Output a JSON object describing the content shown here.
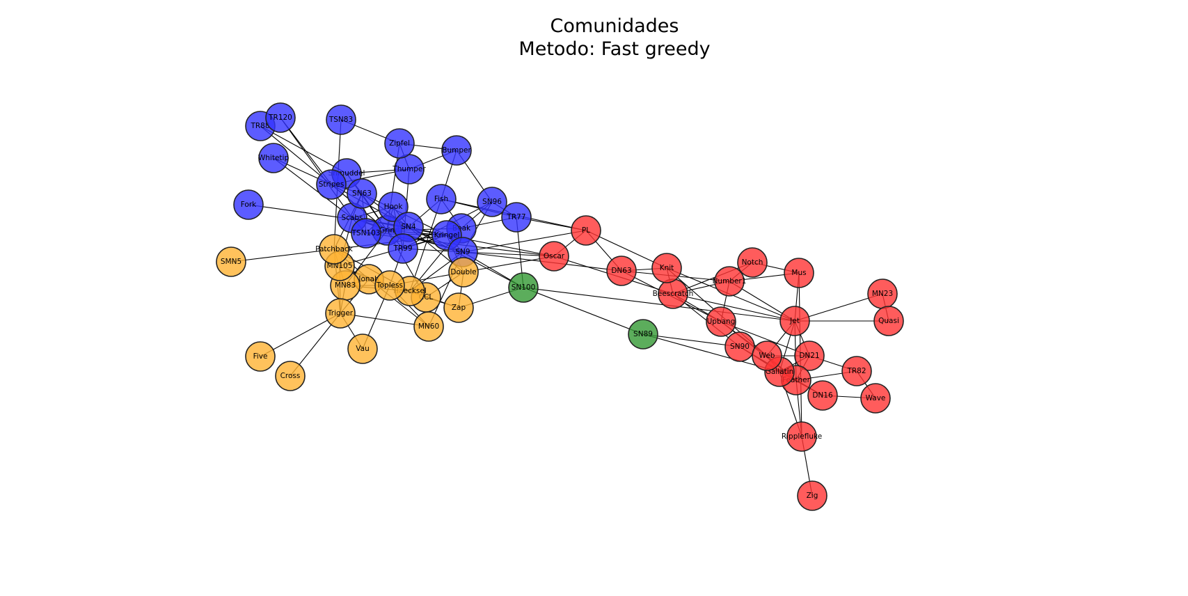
{
  "title": {
    "line1": "Comunidades",
    "line2": "Metodo: Fast greedy"
  },
  "community_colors": {
    "blue": "#3333ff",
    "orange": "#ffb333",
    "green": "#339933",
    "red": "#ff3333"
  },
  "nodes": [
    {
      "id": "Beak",
      "community": "blue"
    },
    {
      "id": "Bumper",
      "community": "blue"
    },
    {
      "id": "Fish",
      "community": "blue"
    },
    {
      "id": "Fork",
      "community": "blue"
    },
    {
      "id": "Grin",
      "community": "blue"
    },
    {
      "id": "Hook",
      "community": "blue"
    },
    {
      "id": "Kringel",
      "community": "blue"
    },
    {
      "id": "Scabs",
      "community": "blue"
    },
    {
      "id": "Shmuddel",
      "community": "blue"
    },
    {
      "id": "SN4",
      "community": "blue"
    },
    {
      "id": "SN9",
      "community": "blue"
    },
    {
      "id": "SN63",
      "community": "blue"
    },
    {
      "id": "SN96",
      "community": "blue"
    },
    {
      "id": "Stripes",
      "community": "blue"
    },
    {
      "id": "Thumper",
      "community": "blue"
    },
    {
      "id": "TR77",
      "community": "blue"
    },
    {
      "id": "TR88",
      "community": "blue"
    },
    {
      "id": "TR99",
      "community": "blue"
    },
    {
      "id": "TR120",
      "community": "blue"
    },
    {
      "id": "TSN83",
      "community": "blue"
    },
    {
      "id": "TSN103",
      "community": "blue"
    },
    {
      "id": "Whitetip",
      "community": "blue"
    },
    {
      "id": "Zipfel",
      "community": "blue"
    },
    {
      "id": "CCL",
      "community": "orange"
    },
    {
      "id": "Cross",
      "community": "orange"
    },
    {
      "id": "Double",
      "community": "orange"
    },
    {
      "id": "Five",
      "community": "orange"
    },
    {
      "id": "Haecksel",
      "community": "orange"
    },
    {
      "id": "Jonah",
      "community": "orange"
    },
    {
      "id": "MN60",
      "community": "orange"
    },
    {
      "id": "MN83",
      "community": "orange"
    },
    {
      "id": "MN105",
      "community": "orange"
    },
    {
      "id": "Patchback",
      "community": "orange"
    },
    {
      "id": "SMN5",
      "community": "orange"
    },
    {
      "id": "Topless",
      "community": "orange"
    },
    {
      "id": "Trigger",
      "community": "orange"
    },
    {
      "id": "Vau",
      "community": "orange"
    },
    {
      "id": "Zap",
      "community": "orange"
    },
    {
      "id": "SN89",
      "community": "green"
    },
    {
      "id": "SN100",
      "community": "green"
    },
    {
      "id": "Beescratch",
      "community": "red"
    },
    {
      "id": "DN16",
      "community": "red"
    },
    {
      "id": "DN21",
      "community": "red"
    },
    {
      "id": "DN63",
      "community": "red"
    },
    {
      "id": "Feather",
      "community": "red"
    },
    {
      "id": "Gallatin",
      "community": "red"
    },
    {
      "id": "Jet",
      "community": "red"
    },
    {
      "id": "Knit",
      "community": "red"
    },
    {
      "id": "MN23",
      "community": "red"
    },
    {
      "id": "Mus",
      "community": "red"
    },
    {
      "id": "Notch",
      "community": "red"
    },
    {
      "id": "Number1",
      "community": "red"
    },
    {
      "id": "Oscar",
      "community": "red"
    },
    {
      "id": "PL",
      "community": "red"
    },
    {
      "id": "Quasi",
      "community": "red"
    },
    {
      "id": "Ripplefluke",
      "community": "red"
    },
    {
      "id": "SN90",
      "community": "red"
    },
    {
      "id": "TR82",
      "community": "red"
    },
    {
      "id": "Upbang",
      "community": "red"
    },
    {
      "id": "Wave",
      "community": "red"
    },
    {
      "id": "Web",
      "community": "red"
    },
    {
      "id": "Zig",
      "community": "red"
    }
  ],
  "edges": [
    [
      "Beak",
      "Fish"
    ],
    [
      "Beak",
      "Grin"
    ],
    [
      "Beak",
      "Haecksel"
    ],
    [
      "Beak",
      "SN96"
    ],
    [
      "Beak",
      "TR77"
    ],
    [
      "Beescratch",
      "Jet"
    ],
    [
      "Beescratch",
      "Knit"
    ],
    [
      "Beescratch",
      "Notch"
    ],
    [
      "Beescratch",
      "Number1"
    ],
    [
      "Beescratch",
      "Oscar"
    ],
    [
      "Beescratch",
      "SN90"
    ],
    [
      "Beescratch",
      "Upbang"
    ],
    [
      "Bumper",
      "Fish"
    ],
    [
      "Bumper",
      "SN96"
    ],
    [
      "Bumper",
      "Thumper"
    ],
    [
      "Bumper",
      "Zipfel"
    ],
    [
      "CCL",
      "Double"
    ],
    [
      "CCL",
      "Grin"
    ],
    [
      "CCL",
      "Zap"
    ],
    [
      "Cross",
      "Trigger"
    ],
    [
      "DN16",
      "Feather"
    ],
    [
      "DN16",
      "Gallatin"
    ],
    [
      "DN16",
      "Wave"
    ],
    [
      "DN21",
      "Feather"
    ],
    [
      "DN21",
      "Gallatin"
    ],
    [
      "DN21",
      "Jet"
    ],
    [
      "DN21",
      "TR82"
    ],
    [
      "DN21",
      "Upbang"
    ],
    [
      "DN21",
      "Web"
    ],
    [
      "DN63",
      "Knit"
    ],
    [
      "DN63",
      "Number1"
    ],
    [
      "DN63",
      "PL"
    ],
    [
      "DN63",
      "SN9"
    ],
    [
      "DN63",
      "Upbang"
    ],
    [
      "Double",
      "Kringel"
    ],
    [
      "Double",
      "Oscar"
    ],
    [
      "Double",
      "SN4"
    ],
    [
      "Double",
      "Topless"
    ],
    [
      "Double",
      "Zap"
    ],
    [
      "Feather",
      "Gallatin"
    ],
    [
      "Feather",
      "Jet"
    ],
    [
      "Feather",
      "Ripplefluke"
    ],
    [
      "Feather",
      "SN90"
    ],
    [
      "Feather",
      "TR82"
    ],
    [
      "Feather",
      "Upbang"
    ],
    [
      "Feather",
      "Web"
    ],
    [
      "Fish",
      "Haecksel"
    ],
    [
      "Fish",
      "PL"
    ],
    [
      "Fish",
      "SN4"
    ],
    [
      "Fish",
      "TR77"
    ],
    [
      "Five",
      "Trigger"
    ],
    [
      "Fork",
      "SN4"
    ],
    [
      "Gallatin",
      "Jet"
    ],
    [
      "Gallatin",
      "Ripplefluke"
    ],
    [
      "Gallatin",
      "SN89"
    ],
    [
      "Gallatin",
      "SN90"
    ],
    [
      "Gallatin",
      "Web"
    ],
    [
      "Grin",
      "Hook"
    ],
    [
      "Grin",
      "Kringel"
    ],
    [
      "Grin",
      "MN83"
    ],
    [
      "Grin",
      "Scabs"
    ],
    [
      "Grin",
      "Shmuddel"
    ],
    [
      "Grin",
      "SN4"
    ],
    [
      "Grin",
      "SN9"
    ],
    [
      "Grin",
      "SN63"
    ],
    [
      "Grin",
      "Stripes"
    ],
    [
      "Grin",
      "TR88"
    ],
    [
      "Grin",
      "TR99"
    ],
    [
      "Grin",
      "TSN103"
    ],
    [
      "Grin",
      "Zipfel"
    ],
    [
      "Haecksel",
      "Jonah"
    ],
    [
      "Haecksel",
      "MN83"
    ],
    [
      "Haecksel",
      "Patchback"
    ],
    [
      "Haecksel",
      "SN9"
    ],
    [
      "Haecksel",
      "Topless"
    ],
    [
      "Haecksel",
      "Zap"
    ],
    [
      "Hook",
      "Scabs"
    ],
    [
      "Hook",
      "SN4"
    ],
    [
      "Hook",
      "TR99"
    ],
    [
      "Hook",
      "TSN103"
    ],
    [
      "Jet",
      "Knit"
    ],
    [
      "Jet",
      "MN23"
    ],
    [
      "Jet",
      "Mus"
    ],
    [
      "Jet",
      "Number1"
    ],
    [
      "Jet",
      "Quasi"
    ],
    [
      "Jet",
      "SN100"
    ],
    [
      "Jet",
      "Web"
    ],
    [
      "Jonah",
      "MN105"
    ],
    [
      "Jonah",
      "MN60"
    ],
    [
      "Jonah",
      "MN83"
    ],
    [
      "Jonah",
      "Patchback"
    ],
    [
      "Jonah",
      "Trigger"
    ],
    [
      "Knit",
      "PL"
    ],
    [
      "Knit",
      "Web"
    ],
    [
      "Kringel",
      "MN105"
    ],
    [
      "Kringel",
      "Oscar"
    ],
    [
      "Kringel",
      "Patchback"
    ],
    [
      "Kringel",
      "Scabs"
    ],
    [
      "Kringel",
      "SN4"
    ],
    [
      "Kringel",
      "SN9"
    ],
    [
      "Kringel",
      "SN63"
    ],
    [
      "Kringel",
      "TR99"
    ],
    [
      "Kringel",
      "TSN103"
    ],
    [
      "MN105",
      "Scabs"
    ],
    [
      "MN105",
      "Topless"
    ],
    [
      "MN105",
      "Trigger"
    ],
    [
      "MN23",
      "Quasi"
    ],
    [
      "MN60",
      "Topless"
    ],
    [
      "MN60",
      "Trigger"
    ],
    [
      "MN83",
      "Patchback"
    ],
    [
      "MN83",
      "Topless"
    ],
    [
      "MN83",
      "Trigger"
    ],
    [
      "Mus",
      "Notch"
    ],
    [
      "Mus",
      "Number1"
    ],
    [
      "Mus",
      "Ripplefluke"
    ],
    [
      "Notch",
      "Number1"
    ],
    [
      "Number1",
      "Upbang"
    ],
    [
      "Oscar",
      "PL"
    ],
    [
      "Oscar",
      "SN9"
    ],
    [
      "Oscar",
      "TSN103"
    ],
    [
      "Patchback",
      "SMN5"
    ],
    [
      "Patchback",
      "SN63"
    ],
    [
      "Patchback",
      "TSN83"
    ],
    [
      "Patchback",
      "Trigger"
    ],
    [
      "PL",
      "SN9"
    ],
    [
      "PL",
      "TR77"
    ],
    [
      "Ripplefluke",
      "Zig"
    ],
    [
      "Scabs",
      "SN4"
    ],
    [
      "Scabs",
      "SN63"
    ],
    [
      "Scabs",
      "SN9"
    ],
    [
      "Scabs",
      "TR120"
    ],
    [
      "Scabs",
      "TSN103"
    ],
    [
      "Scabs",
      "Whitetip"
    ],
    [
      "Shmuddel",
      "SN63"
    ],
    [
      "Shmuddel",
      "TR88"
    ],
    [
      "Shmuddel",
      "Thumper"
    ],
    [
      "SN100",
      "SN4"
    ],
    [
      "SN100",
      "SN89"
    ],
    [
      "SN100",
      "SN9"
    ],
    [
      "SN100",
      "TR77"
    ],
    [
      "SN100",
      "Zap"
    ],
    [
      "SN4",
      "SN63"
    ],
    [
      "SN4",
      "SN9"
    ],
    [
      "SN4",
      "Stripes"
    ],
    [
      "SN4",
      "TSN103"
    ],
    [
      "SN63",
      "Stripes"
    ],
    [
      "SN63",
      "TSN103"
    ],
    [
      "SN89",
      "SN90"
    ],
    [
      "SN9",
      "SN96"
    ],
    [
      "SN9",
      "TR99"
    ],
    [
      "SN96",
      "TR77"
    ],
    [
      "SN96",
      "TR99"
    ],
    [
      "Stripes",
      "Thumper"
    ],
    [
      "Stripes",
      "TR120"
    ],
    [
      "Stripes",
      "Whitetip"
    ],
    [
      "Thumper",
      "TR99"
    ],
    [
      "Thumper",
      "Zipfel"
    ],
    [
      "Topless",
      "TR99"
    ],
    [
      "Topless",
      "Zap"
    ],
    [
      "TR82",
      "Wave"
    ],
    [
      "TSN83",
      "Zipfel"
    ],
    [
      "Trigger",
      "Vau"
    ],
    [
      "Upbang",
      "Web"
    ],
    [
      "Vau",
      "Topless"
    ],
    [
      "MN60",
      "SN9"
    ]
  ]
}
